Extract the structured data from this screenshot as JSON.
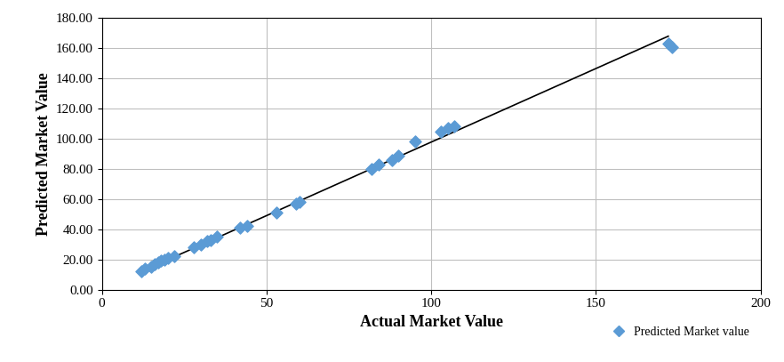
{
  "chart_data": {
    "type": "scatter",
    "x_label": "Actual Market Value",
    "y_label": "Predicted Market Value",
    "xlim": [
      0,
      200
    ],
    "xticks": [
      0,
      50,
      100,
      150,
      200
    ],
    "ylim": [
      0,
      180
    ],
    "yticks": [
      {
        "value": 0,
        "label": "0.00"
      },
      {
        "value": 20,
        "label": "20.00"
      },
      {
        "value": 40,
        "label": "40.00"
      },
      {
        "value": 60,
        "label": "60.00"
      },
      {
        "value": 80,
        "label": "80.00"
      },
      {
        "value": 100,
        "label": "100.00"
      },
      {
        "value": 120,
        "label": "120.00"
      },
      {
        "value": 140,
        "label": "140.00"
      },
      {
        "value": 160,
        "label": "160.00"
      },
      {
        "value": 180,
        "label": "180.00"
      }
    ],
    "grid": true,
    "legend": "lower right",
    "series": [
      {
        "name": "Predicted Market value",
        "type": "scatter",
        "color": "#5b9bd5",
        "marker": "diamond",
        "x": [
          12,
          13,
          15,
          16,
          17,
          18,
          19,
          20,
          22,
          28,
          30,
          32,
          33,
          35,
          42,
          44,
          53,
          59,
          60,
          82,
          84,
          88,
          90,
          95,
          103,
          105,
          107,
          172,
          173
        ],
        "values": [
          12,
          14,
          15,
          17,
          18,
          19,
          20,
          21,
          22,
          28,
          30,
          32,
          33,
          35,
          41,
          42,
          51,
          57,
          58,
          80,
          83,
          86,
          89,
          98,
          105,
          107,
          108,
          163,
          161
        ]
      },
      {
        "type": "line",
        "color": "#000000",
        "line_style": "solid",
        "x": [
          12,
          172
        ],
        "values": [
          12,
          168
        ]
      }
    ]
  }
}
